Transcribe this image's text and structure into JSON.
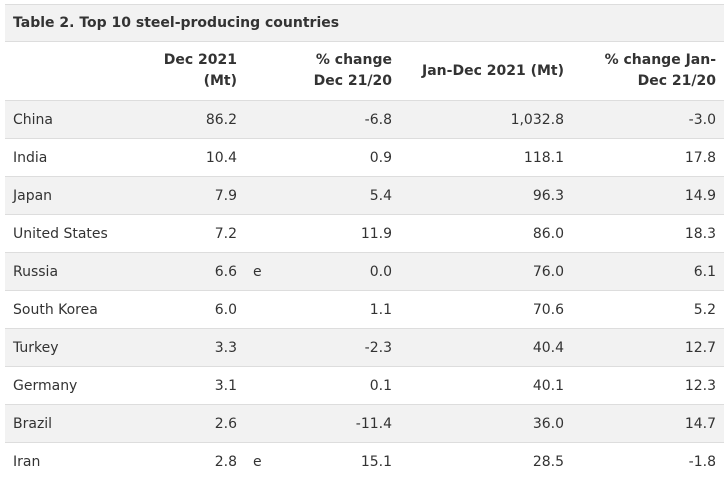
{
  "table": {
    "caption": "Table 2. Top 10 steel-producing countries",
    "headers": {
      "country": "",
      "dec2021": "Dec 2021 (Mt)",
      "flag": "",
      "change_dec": "% change Dec 21/20",
      "jan_dec": "Jan-Dec 2021 (Mt)",
      "change_ytd": "% change Jan-Dec 21/20"
    },
    "rows": [
      {
        "country": "China",
        "dec2021": "86.2",
        "flag": "",
        "change_dec": "-6.8",
        "jan_dec": "1,032.8",
        "change_ytd": "-3.0"
      },
      {
        "country": "India",
        "dec2021": "10.4",
        "flag": "",
        "change_dec": "0.9",
        "jan_dec": "118.1",
        "change_ytd": "17.8"
      },
      {
        "country": "Japan",
        "dec2021": "7.9",
        "flag": "",
        "change_dec": "5.4",
        "jan_dec": "96.3",
        "change_ytd": "14.9"
      },
      {
        "country": "United States",
        "dec2021": "7.2",
        "flag": "",
        "change_dec": "11.9",
        "jan_dec": "86.0",
        "change_ytd": "18.3"
      },
      {
        "country": "Russia",
        "dec2021": "6.6",
        "flag": "e",
        "change_dec": "0.0",
        "jan_dec": "76.0",
        "change_ytd": "6.1"
      },
      {
        "country": "South Korea",
        "dec2021": "6.0",
        "flag": "",
        "change_dec": "1.1",
        "jan_dec": "70.6",
        "change_ytd": "5.2"
      },
      {
        "country": "Turkey",
        "dec2021": "3.3",
        "flag": "",
        "change_dec": "-2.3",
        "jan_dec": "40.4",
        "change_ytd": "12.7"
      },
      {
        "country": "Germany",
        "dec2021": "3.1",
        "flag": "",
        "change_dec": "0.1",
        "jan_dec": "40.1",
        "change_ytd": "12.3"
      },
      {
        "country": "Brazil",
        "dec2021": "2.6",
        "flag": "",
        "change_dec": "-11.4",
        "jan_dec": "36.0",
        "change_ytd": "14.7"
      },
      {
        "country": "Iran",
        "dec2021": "2.8",
        "flag": "e",
        "change_dec": "15.1",
        "jan_dec": "28.5",
        "change_ytd": "-1.8"
      }
    ]
  },
  "colors": {
    "stripe": "#f2f2f2",
    "border": "#dddddd",
    "text": "#333333"
  }
}
